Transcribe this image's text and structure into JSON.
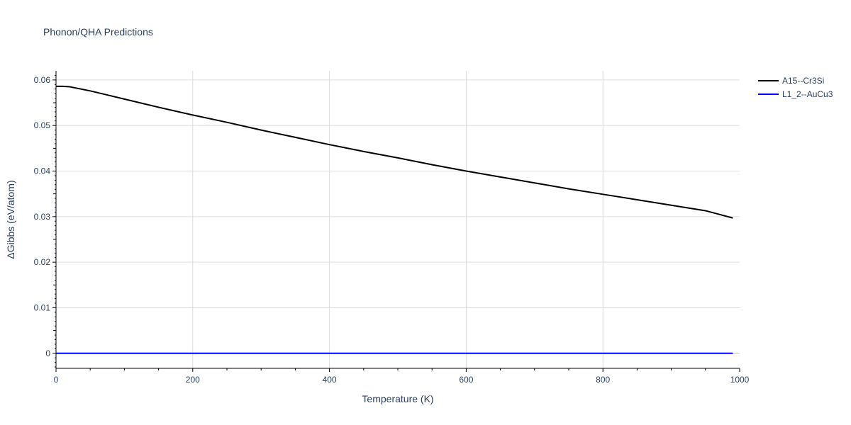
{
  "chart_data": {
    "type": "line",
    "title": "Phonon/QHA Predictions",
    "xlabel": "Temperature (K)",
    "ylabel": "ΔGibbs (eV/atom)",
    "xlim": [
      0,
      1000
    ],
    "ylim": [
      -0.0033,
      0.062
    ],
    "x_ticks": [
      0,
      200,
      400,
      600,
      800,
      1000
    ],
    "y_ticks": [
      0,
      0.01,
      0.02,
      0.03,
      0.04,
      0.05,
      0.06
    ],
    "x_tick_labels": [
      "0",
      "200",
      "400",
      "600",
      "800",
      "1000"
    ],
    "y_tick_labels": [
      "0",
      "0.01",
      "0.02",
      "0.03",
      "0.04",
      "0.05",
      "0.06"
    ],
    "grid": true,
    "legend_position": "right",
    "series": [
      {
        "name": "A15--Cr3Si",
        "color": "#000000",
        "x": [
          0,
          10,
          20,
          30,
          40,
          50,
          75,
          100,
          150,
          200,
          250,
          300,
          350,
          400,
          450,
          500,
          550,
          600,
          650,
          700,
          750,
          800,
          850,
          900,
          950,
          990
        ],
        "y": [
          0.0586,
          0.0586,
          0.0585,
          0.0582,
          0.0579,
          0.0576,
          0.0567,
          0.0558,
          0.054,
          0.0523,
          0.0507,
          0.049,
          0.0474,
          0.0458,
          0.0443,
          0.0429,
          0.0414,
          0.04,
          0.0387,
          0.0374,
          0.0361,
          0.0349,
          0.0337,
          0.0325,
          0.0313,
          0.0297
        ]
      },
      {
        "name": "L1_2--AuCu3",
        "color": "#0000ff",
        "x": [
          0,
          990
        ],
        "y": [
          0,
          0
        ]
      }
    ]
  }
}
